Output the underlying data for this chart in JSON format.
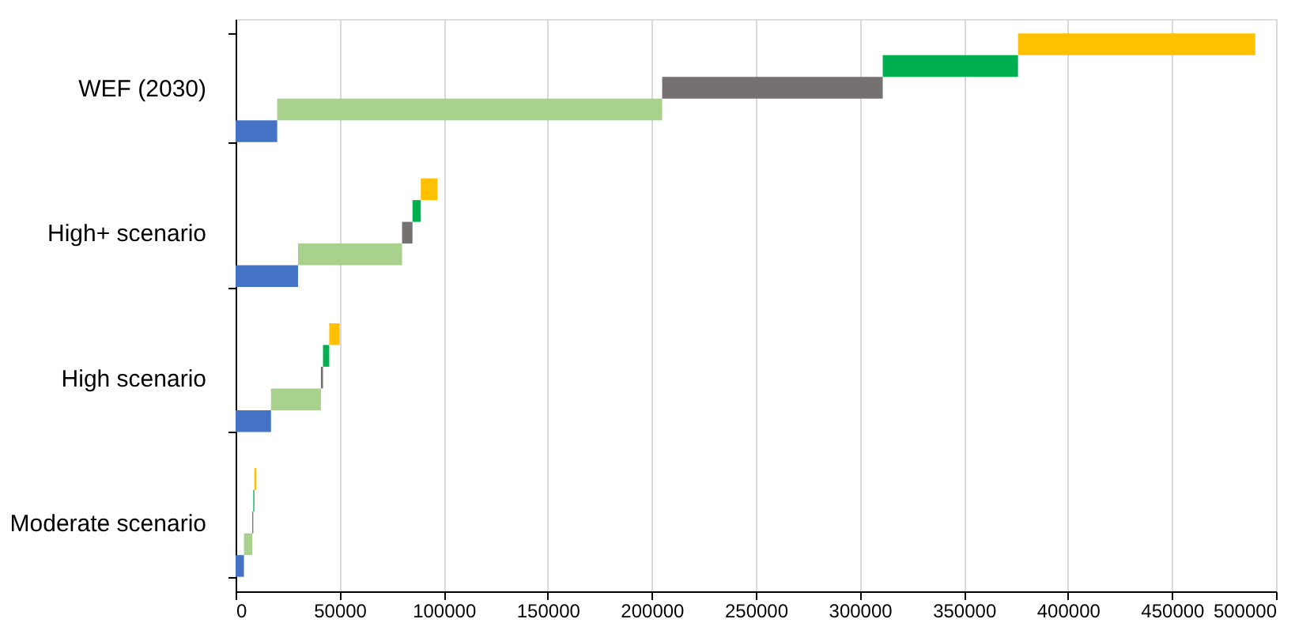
{
  "chart_data": {
    "type": "bar",
    "orientation": "horizontal",
    "categories": [
      "WEF (2030)",
      "High+ scenario",
      "High scenario",
      "Moderate scenario"
    ],
    "series": [
      {
        "color": "#4472c4",
        "base": [
          0,
          0,
          0,
          0
        ],
        "values": [
          20000,
          30000,
          17000,
          4000
        ]
      },
      {
        "color": "#a9d18e",
        "base": [
          20000,
          30000,
          17000,
          4000
        ],
        "values": [
          185000,
          50000,
          24000,
          4000
        ]
      },
      {
        "color": "#767171",
        "base": [
          205000,
          80000,
          41000,
          8000
        ],
        "values": [
          106000,
          5000,
          1000,
          500
        ]
      },
      {
        "color": "#00b050",
        "base": [
          311000,
          85000,
          42000,
          8500
        ],
        "values": [
          65000,
          4000,
          3000,
          500
        ]
      },
      {
        "color": "#ffc000",
        "base": [
          376000,
          89000,
          45000,
          9000
        ],
        "values": [
          114000,
          8000,
          5000,
          1000
        ]
      }
    ],
    "xlim": [
      0,
      500000
    ],
    "xticks": [
      0,
      50000,
      100000,
      150000,
      200000,
      250000,
      300000,
      350000,
      400000,
      450000,
      500000
    ],
    "grid": "x",
    "legend": false
  }
}
